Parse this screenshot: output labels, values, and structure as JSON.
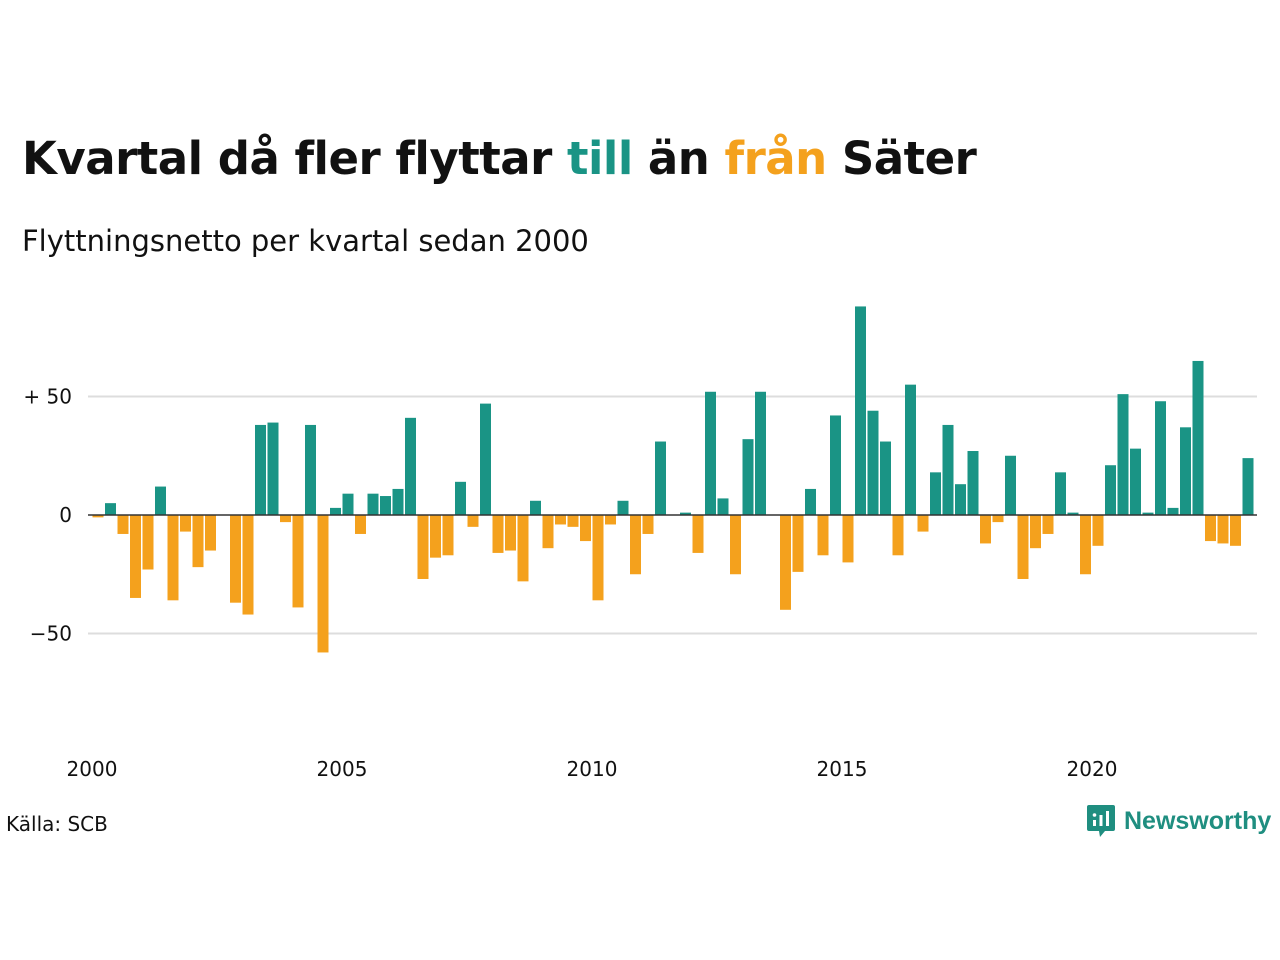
{
  "title": {
    "part1": "Kvartal då fler flyttar",
    "pos_word": "till",
    "middle": "än",
    "neg_word": "från",
    "end": "Säter"
  },
  "subtitle": "Flyttningsnetto per kvartal sedan 2000",
  "source": "Källa: SCB",
  "brand": "Newsworthy",
  "colors": {
    "positive": "#1a9485",
    "negative": "#f4a11d",
    "grid": "#dddddd",
    "zero_line": "#333333"
  },
  "chart_data": {
    "type": "bar",
    "x_start": "2000 Q1",
    "x_ticks": [
      "2000",
      "2005",
      "2010",
      "2015",
      "2020"
    ],
    "y_ticks": [
      {
        "value": 50,
        "label": "+ 50"
      },
      {
        "value": 0,
        "label": "0"
      },
      {
        "value": -50,
        "label": "−50"
      }
    ],
    "grid": true,
    "values": [
      -1,
      5,
      -8,
      -35,
      -23,
      12,
      -36,
      -7,
      -22,
      -15,
      0,
      -37,
      -42,
      38,
      39,
      -3,
      -39,
      38,
      -58,
      3,
      9,
      -8,
      9,
      8,
      11,
      41,
      -27,
      -18,
      -17,
      14,
      -5,
      47,
      -16,
      -15,
      -28,
      6,
      -14,
      -4,
      -5,
      -11,
      -36,
      -4,
      6,
      -25,
      -8,
      31,
      0,
      1,
      -16,
      52,
      7,
      -25,
      32,
      52,
      0,
      -40,
      -24,
      11,
      -17,
      42,
      -20,
      88,
      44,
      31,
      -17,
      55,
      -7,
      18,
      38,
      13,
      27,
      -12,
      -3,
      25,
      -27,
      -14,
      -8,
      18,
      1,
      -25,
      -13,
      21,
      51,
      28,
      1,
      48,
      3,
      37,
      65,
      -11,
      -12,
      -13,
      24
    ]
  }
}
